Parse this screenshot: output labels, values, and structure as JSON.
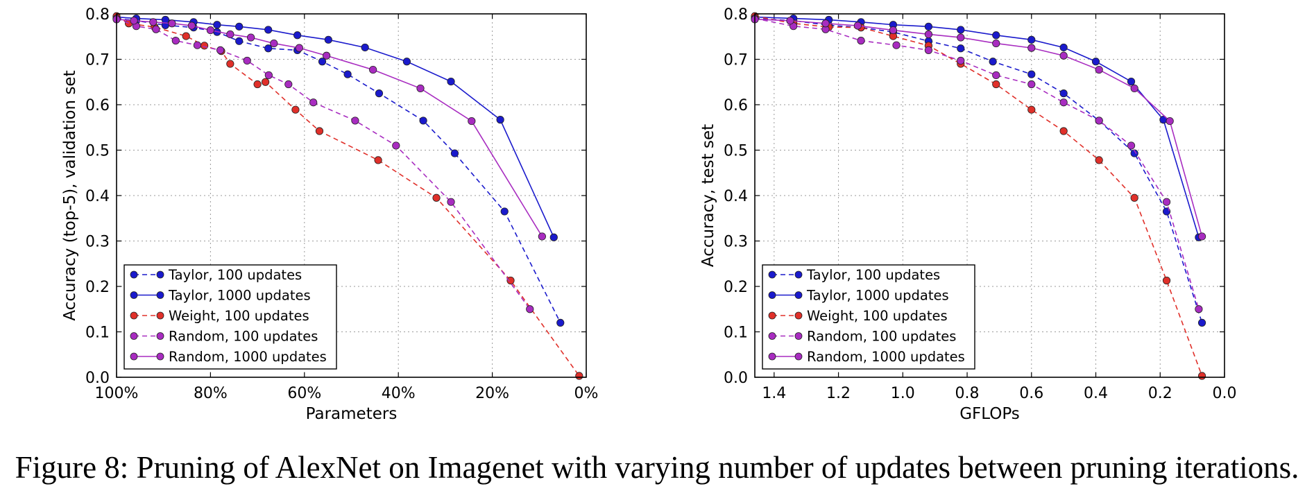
{
  "caption": "Figure 8: Pruning of AlexNet on Imagenet with varying number of updates between pruning iterations.",
  "colors": {
    "taylor": "#1a1acc",
    "weight": "#e0302a",
    "random": "#a82cc0",
    "grid": "#9a9a9a"
  },
  "chart_data": [
    {
      "type": "line",
      "xlabel": "Parameters",
      "ylabel": "Accuracy (top-5), validation set",
      "xlim": [
        100,
        0
      ],
      "ylim": [
        0.0,
        0.8
      ],
      "xticks": [
        100,
        80,
        60,
        40,
        20,
        0
      ],
      "xtick_labels": [
        "100%",
        "80%",
        "60%",
        "40%",
        "20%",
        "0%"
      ],
      "yticks": [
        0.0,
        0.1,
        0.2,
        0.3,
        0.4,
        0.5,
        0.6,
        0.7,
        0.8
      ],
      "ytick_labels": [
        "0.0",
        "0.1",
        "0.2",
        "0.3",
        "0.4",
        "0.5",
        "0.6",
        "0.7",
        "0.8"
      ],
      "grid": true,
      "legend_position": "lower-left",
      "series": [
        {
          "name": "Taylor, 100 updates",
          "color_key": "taylor",
          "dashed": true,
          "x": [
            100,
            95.8,
            89.6,
            83.6,
            78.6,
            73.9,
            67.7,
            61.5,
            56.2,
            50.8,
            44.1,
            34.7,
            28.0,
            17.4,
            5.5
          ],
          "y": [
            0.79,
            0.785,
            0.775,
            0.77,
            0.76,
            0.74,
            0.724,
            0.72,
            0.695,
            0.667,
            0.625,
            0.565,
            0.493,
            0.365,
            0.12
          ]
        },
        {
          "name": "Taylor, 1000 updates",
          "color_key": "taylor",
          "dashed": false,
          "x": [
            100,
            95.8,
            89.6,
            83.6,
            78.6,
            73.9,
            67.7,
            61.5,
            54.9,
            47.1,
            38.2,
            28.8,
            18.3,
            6.9
          ],
          "y": [
            0.793,
            0.79,
            0.787,
            0.782,
            0.776,
            0.772,
            0.765,
            0.753,
            0.743,
            0.726,
            0.695,
            0.651,
            0.567,
            0.308
          ]
        },
        {
          "name": "Weight, 100 updates",
          "color_key": "weight",
          "dashed": true,
          "x": [
            100,
            97.4,
            91.9,
            85.2,
            81.3,
            77.7,
            75.8,
            70.0,
            68.3,
            61.9,
            56.8,
            44.3,
            31.9,
            16.1,
            1.5
          ],
          "y": [
            0.795,
            0.779,
            0.771,
            0.751,
            0.73,
            0.718,
            0.69,
            0.645,
            0.65,
            0.589,
            0.542,
            0.478,
            0.395,
            0.213,
            0.003
          ]
        },
        {
          "name": "Random, 100 updates",
          "color_key": "random",
          "dashed": true,
          "x": [
            100,
            95.8,
            91.6,
            87.4,
            82.8,
            77.9,
            72.2,
            67.6,
            63.4,
            58.1,
            49.2,
            40.5,
            28.8,
            12.0
          ],
          "y": [
            0.79,
            0.773,
            0.766,
            0.741,
            0.731,
            0.72,
            0.697,
            0.665,
            0.645,
            0.605,
            0.565,
            0.51,
            0.386,
            0.15
          ]
        },
        {
          "name": "Random, 1000 updates",
          "color_key": "random",
          "dashed": false,
          "x": [
            100,
            96.3,
            92.2,
            88.2,
            84.0,
            80.0,
            75.8,
            71.4,
            66.5,
            61.1,
            55.3,
            45.4,
            35.3,
            24.4,
            9.4
          ],
          "y": [
            0.788,
            0.785,
            0.782,
            0.779,
            0.774,
            0.764,
            0.755,
            0.748,
            0.735,
            0.725,
            0.708,
            0.677,
            0.636,
            0.564,
            0.31
          ]
        }
      ]
    },
    {
      "type": "line",
      "xlabel": "GFLOPs",
      "ylabel": "Accuracy, test set",
      "xlim": [
        1.46,
        0.0
      ],
      "ylim": [
        0.0,
        0.8
      ],
      "xticks": [
        1.4,
        1.2,
        1.0,
        0.8,
        0.6,
        0.4,
        0.2,
        0.0
      ],
      "xtick_labels": [
        "1.4",
        "1.2",
        "1.0",
        "0.8",
        "0.6",
        "0.4",
        "0.2",
        "0.0"
      ],
      "yticks": [
        0.0,
        0.1,
        0.2,
        0.3,
        0.4,
        0.5,
        0.6,
        0.7,
        0.8
      ],
      "ytick_labels": [
        "0.0",
        "0.1",
        "0.2",
        "0.3",
        "0.4",
        "0.5",
        "0.6",
        "0.7",
        "0.8"
      ],
      "grid": true,
      "legend_position": "lower-left",
      "series": [
        {
          "name": "Taylor, 100 updates",
          "color_key": "taylor",
          "dashed": true,
          "x": [
            1.46,
            1.34,
            1.23,
            1.13,
            1.03,
            0.92,
            0.82,
            0.72,
            0.6,
            0.5,
            0.39,
            0.28,
            0.18,
            0.07
          ],
          "y": [
            0.79,
            0.785,
            0.775,
            0.77,
            0.76,
            0.74,
            0.724,
            0.695,
            0.667,
            0.625,
            0.565,
            0.493,
            0.365,
            0.12
          ]
        },
        {
          "name": "Taylor, 1000 updates",
          "color_key": "taylor",
          "dashed": false,
          "x": [
            1.46,
            1.34,
            1.23,
            1.13,
            1.03,
            0.92,
            0.82,
            0.71,
            0.6,
            0.5,
            0.4,
            0.29,
            0.19,
            0.08
          ],
          "y": [
            0.793,
            0.79,
            0.787,
            0.782,
            0.776,
            0.772,
            0.765,
            0.753,
            0.743,
            0.726,
            0.695,
            0.651,
            0.567,
            0.308
          ]
        },
        {
          "name": "Weight, 100 updates",
          "color_key": "weight",
          "dashed": true,
          "x": [
            1.46,
            1.34,
            1.23,
            1.13,
            1.03,
            0.92,
            0.82,
            0.71,
            0.6,
            0.5,
            0.39,
            0.28,
            0.18,
            0.07
          ],
          "y": [
            0.795,
            0.779,
            0.771,
            0.77,
            0.751,
            0.73,
            0.69,
            0.645,
            0.589,
            0.542,
            0.478,
            0.395,
            0.213,
            0.003
          ]
        },
        {
          "name": "Random, 100 updates",
          "color_key": "random",
          "dashed": true,
          "x": [
            1.46,
            1.34,
            1.24,
            1.13,
            1.02,
            0.92,
            0.82,
            0.71,
            0.6,
            0.5,
            0.39,
            0.29,
            0.18,
            0.08
          ],
          "y": [
            0.79,
            0.773,
            0.766,
            0.741,
            0.731,
            0.72,
            0.697,
            0.665,
            0.645,
            0.605,
            0.565,
            0.51,
            0.386,
            0.15
          ]
        },
        {
          "name": "Random, 1000 updates",
          "color_key": "random",
          "dashed": false,
          "x": [
            1.46,
            1.35,
            1.24,
            1.14,
            1.03,
            0.92,
            0.82,
            0.71,
            0.6,
            0.5,
            0.39,
            0.28,
            0.17,
            0.07
          ],
          "y": [
            0.788,
            0.785,
            0.779,
            0.774,
            0.764,
            0.755,
            0.748,
            0.735,
            0.725,
            0.708,
            0.677,
            0.636,
            0.564,
            0.31
          ]
        }
      ]
    }
  ]
}
